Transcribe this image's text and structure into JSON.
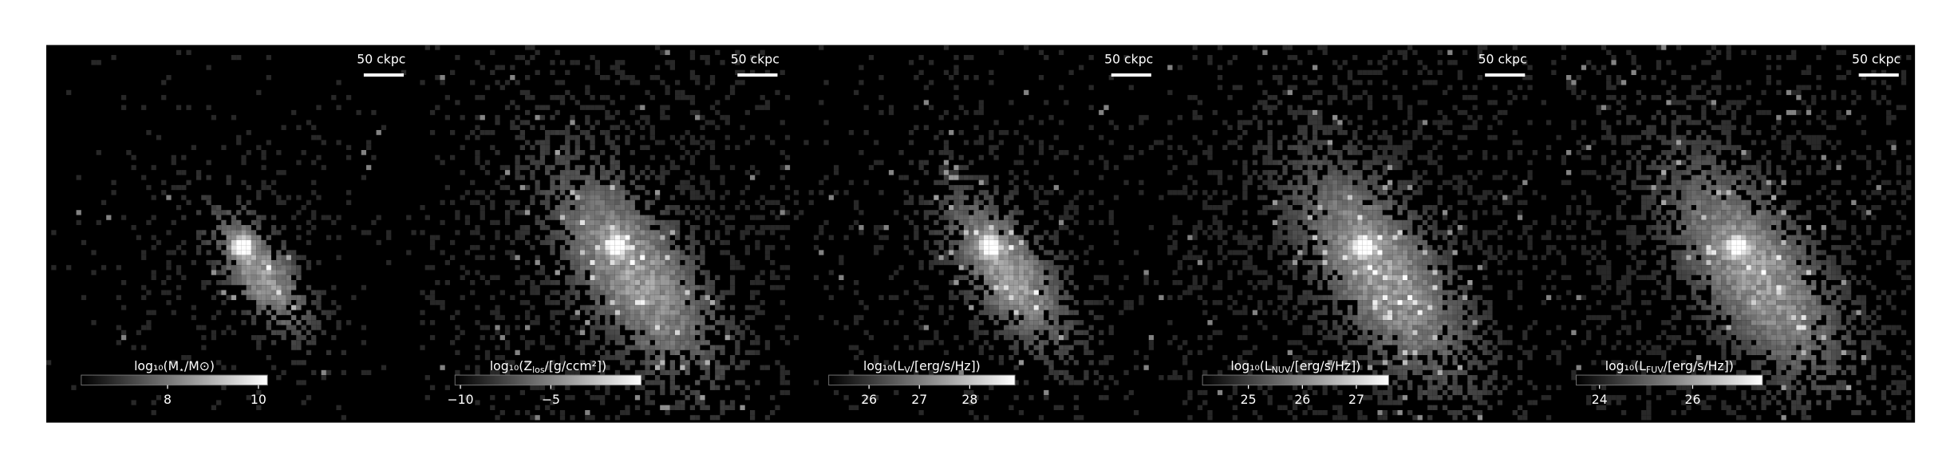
{
  "panels": [
    {
      "scale_bar": "50 ckpc",
      "colorbar": {
        "label": {
          "pre": "log₁₀(M",
          "sub": "⋆",
          "post": "/M⊙)"
        },
        "range": [
          6.1,
          10.2
        ],
        "ticks": [
          8,
          10
        ]
      }
    },
    {
      "scale_bar": "50 ckpc",
      "colorbar": {
        "label": {
          "pre": "log₁₀(Z",
          "sub": "los",
          "post": "/[g/ccm²])"
        },
        "range": [
          -10.3,
          0
        ],
        "ticks": [
          {
            "value": -10,
            "label": "−10"
          },
          {
            "value": -5,
            "label": "−5"
          }
        ]
      }
    },
    {
      "scale_bar": "50 ckpc",
      "colorbar": {
        "label": {
          "pre": "log₁₀(L",
          "sub": "V",
          "post": "/[erg/s/Hz])"
        },
        "range": [
          25.2,
          28.9
        ],
        "ticks": [
          26,
          27,
          28
        ]
      }
    },
    {
      "scale_bar": "50 ckpc",
      "colorbar": {
        "label": {
          "pre": "log₁₀(L",
          "sub": "NUV",
          "post": "/[erg/s/Hz])"
        },
        "range": [
          24.15,
          27.6
        ],
        "ticks": [
          25,
          26,
          27
        ]
      }
    },
    {
      "scale_bar": "50 ckpc",
      "colorbar": {
        "label": {
          "pre": "log₁₀(L",
          "sub": "FUV",
          "post": "/[erg/s/Hz])"
        },
        "range": [
          23.5,
          27.5
        ],
        "ticks": [
          24,
          26
        ]
      }
    }
  ]
}
